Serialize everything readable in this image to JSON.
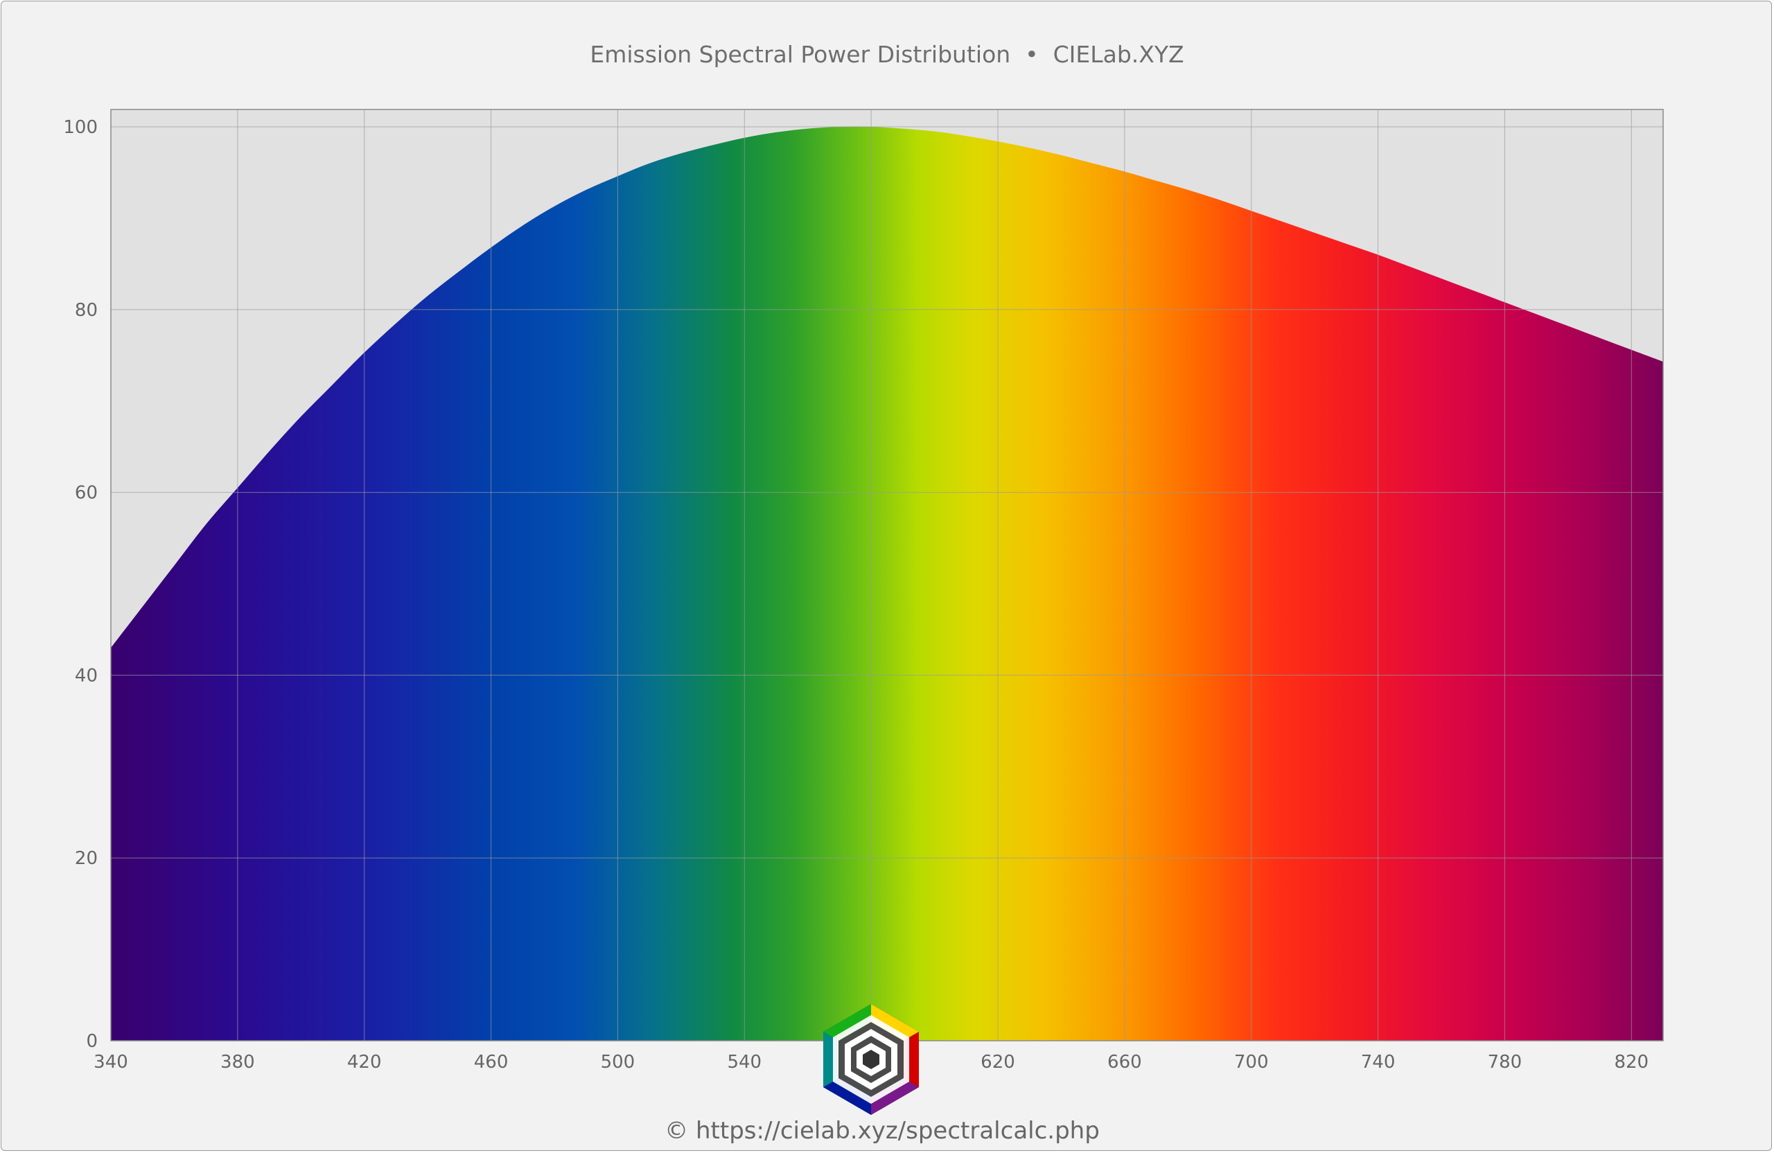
{
  "chart_data": {
    "type": "area",
    "title": "Emission Spectral Power Distribution  •  CIELab.XYZ",
    "xlabel": "",
    "ylabel": "",
    "xlim": [
      340,
      830
    ],
    "ylim": [
      0,
      103
    ],
    "x_ticks": [
      "340",
      "380",
      "420",
      "460",
      "500",
      "540",
      "580",
      "620",
      "660",
      "700",
      "740",
      "780",
      "820"
    ],
    "y_ticks": [
      "0",
      "20",
      "40",
      "60",
      "80",
      "100"
    ],
    "grid": true,
    "legend": "none",
    "fill": "visible-spectrum gradient",
    "series": [
      {
        "x": [
          340,
          350,
          360,
          370,
          380,
          390,
          400,
          410,
          420,
          430,
          440,
          450,
          460,
          470,
          480,
          490,
          500,
          510,
          520,
          530,
          540,
          550,
          560,
          570,
          580,
          590,
          600,
          610,
          620,
          630,
          640,
          650,
          660,
          670,
          680,
          690,
          700,
          710,
          720,
          730,
          740,
          750,
          760,
          770,
          780,
          790,
          800,
          810,
          820,
          830
        ],
        "y": [
          43,
          47.5,
          52,
          56.5,
          60.5,
          64.5,
          68.3,
          71.8,
          75.3,
          78.5,
          81.5,
          84.2,
          86.8,
          89.2,
          91.3,
          93.1,
          94.6,
          96,
          97.1,
          98,
          98.8,
          99.4,
          99.8,
          100,
          100,
          99.8,
          99.5,
          99,
          98.4,
          97.7,
          96.9,
          96,
          95.1,
          94.1,
          93.1,
          92,
          90.8,
          89.6,
          88.4,
          87.2,
          86,
          84.7,
          83.4,
          82.1,
          80.8,
          79.5,
          78.2,
          76.9,
          75.6,
          74.3
        ]
      }
    ]
  },
  "credit": "© https://cielab.xyz/spectralcalc.php",
  "colors": {
    "background": "#f2f2f2",
    "plot_background": "#e1e1e1",
    "grid": "#9a9a9a",
    "text": "#666666"
  },
  "icons": {
    "logo": "cielab-hexagon-logo-icon"
  }
}
